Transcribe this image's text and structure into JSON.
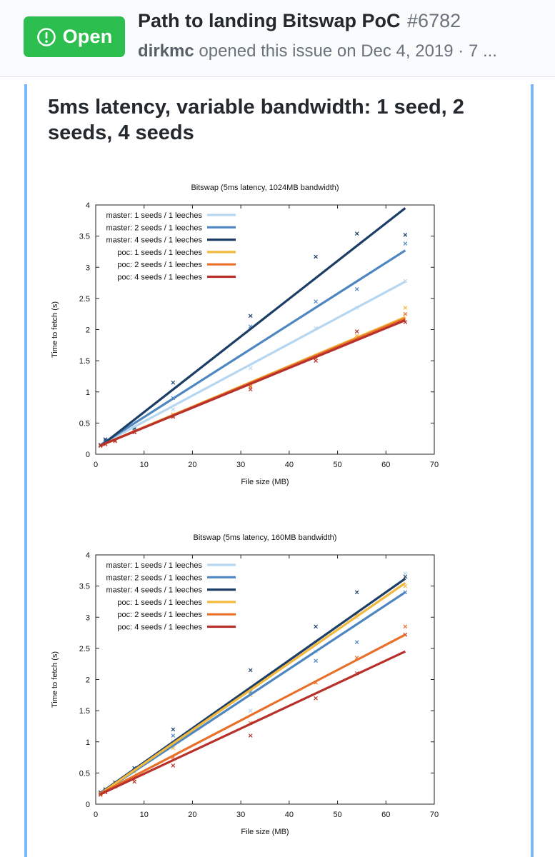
{
  "issue": {
    "state": "Open",
    "title": "Path to landing Bitswap PoC",
    "number": "#6782",
    "author": "dirkmc",
    "meta_rest": "opened this issue on Dec 4, 2019 · 7 ..."
  },
  "section": {
    "heading": "5ms latency, variable bandwidth: 1 seed, 2 seeds, 4 seeds"
  },
  "colors": {
    "open_green": "#2cbe4e",
    "card_border": "#79b8ff"
  },
  "chart_data": [
    {
      "type": "scatter",
      "title": "Bitswap (5ms latency, 1024MB bandwidth)",
      "xlabel": "File size (MB)",
      "ylabel": "Time to fetch (s)",
      "xlim": [
        0,
        70
      ],
      "ylim": [
        0,
        4
      ],
      "xticks": [
        0,
        10,
        20,
        30,
        40,
        50,
        60,
        70
      ],
      "yticks": [
        0,
        0.5,
        1,
        1.5,
        2,
        2.5,
        3,
        3.5,
        4
      ],
      "legend_position": "top-left",
      "series": [
        {
          "name": "master: 1 seeds / 1 leeches",
          "color": "#b7d6f0",
          "fit": [
            [
              1,
              0.15
            ],
            [
              64,
              2.77
            ]
          ],
          "points": [
            [
              1,
              0.14
            ],
            [
              2,
              0.18
            ],
            [
              4,
              0.24
            ],
            [
              8,
              0.38
            ],
            [
              16,
              0.72
            ],
            [
              32,
              1.38
            ],
            [
              45.5,
              2.02
            ],
            [
              54,
              2.35
            ],
            [
              64,
              2.78
            ]
          ]
        },
        {
          "name": "master: 2 seeds / 1 leeches",
          "color": "#4d86c0",
          "fit": [
            [
              1,
              0.15
            ],
            [
              64,
              3.27
            ]
          ],
          "points": [
            [
              1,
              0.15
            ],
            [
              2,
              0.22
            ],
            [
              4,
              0.26
            ],
            [
              8,
              0.4
            ],
            [
              16,
              0.9
            ],
            [
              32,
              2.05
            ],
            [
              45.5,
              2.45
            ],
            [
              54,
              2.65
            ],
            [
              64,
              3.38
            ]
          ]
        },
        {
          "name": "master: 4 seeds / 1 leeches",
          "color": "#1c3d66",
          "fit": [
            [
              1,
              0.13
            ],
            [
              64,
              3.95
            ]
          ],
          "points": [
            [
              1,
              0.15
            ],
            [
              2,
              0.24
            ],
            [
              4,
              0.28
            ],
            [
              8,
              0.42
            ],
            [
              16,
              1.15
            ],
            [
              32,
              2.22
            ],
            [
              45.5,
              3.17
            ],
            [
              54,
              3.54
            ],
            [
              64,
              3.52
            ]
          ]
        },
        {
          "name": "poc: 1 seeds / 1 leeches",
          "color": "#f3b93d",
          "fit": [
            [
              1,
              0.14
            ],
            [
              64,
              2.2
            ]
          ],
          "points": [
            [
              1,
              0.14
            ],
            [
              2,
              0.17
            ],
            [
              4,
              0.22
            ],
            [
              8,
              0.36
            ],
            [
              16,
              0.64
            ],
            [
              32,
              1.1
            ],
            [
              45.5,
              1.58
            ],
            [
              54,
              1.9
            ],
            [
              64,
              2.35
            ]
          ]
        },
        {
          "name": "poc: 2 seeds / 1 leeches",
          "color": "#e8702a",
          "fit": [
            [
              1,
              0.14
            ],
            [
              64,
              2.18
            ]
          ],
          "points": [
            [
              1,
              0.13
            ],
            [
              2,
              0.16
            ],
            [
              4,
              0.22
            ],
            [
              8,
              0.36
            ],
            [
              16,
              0.62
            ],
            [
              32,
              1.08
            ],
            [
              45.5,
              1.54
            ],
            [
              54,
              1.86
            ],
            [
              64,
              2.25
            ]
          ]
        },
        {
          "name": "poc: 4 seeds / 1 leeches",
          "color": "#b8302a",
          "fit": [
            [
              1,
              0.14
            ],
            [
              64,
              2.15
            ]
          ],
          "points": [
            [
              1,
              0.14
            ],
            [
              2,
              0.16
            ],
            [
              4,
              0.21
            ],
            [
              8,
              0.35
            ],
            [
              16,
              0.6
            ],
            [
              32,
              1.04
            ],
            [
              45.5,
              1.5
            ],
            [
              54,
              1.97
            ],
            [
              64,
              2.12
            ]
          ]
        }
      ]
    },
    {
      "type": "scatter",
      "title": "Bitswap (5ms latency, 160MB bandwidth)",
      "xlabel": "File size (MB)",
      "ylabel": "Time to fetch (s)",
      "xlim": [
        0,
        70
      ],
      "ylim": [
        0,
        4
      ],
      "xticks": [
        0,
        10,
        20,
        30,
        40,
        50,
        60,
        70
      ],
      "yticks": [
        0,
        0.5,
        1,
        1.5,
        2,
        2.5,
        3,
        3.5,
        4
      ],
      "legend_position": "top-left",
      "series": [
        {
          "name": "master: 1 seeds / 1 leeches",
          "color": "#b7d6f0",
          "fit": [
            [
              1,
              0.17
            ],
            [
              64,
              3.55
            ]
          ],
          "points": [
            [
              1,
              0.17
            ],
            [
              2,
              0.22
            ],
            [
              4,
              0.3
            ],
            [
              8,
              0.55
            ],
            [
              16,
              1.0
            ],
            [
              32,
              1.5
            ],
            [
              45.5,
              2.45
            ],
            [
              54,
              3.0
            ],
            [
              64,
              3.7
            ]
          ]
        },
        {
          "name": "master: 2 seeds / 1 leeches",
          "color": "#4d86c0",
          "fit": [
            [
              1,
              0.17
            ],
            [
              64,
              3.4
            ]
          ],
          "points": [
            [
              1,
              0.18
            ],
            [
              2,
              0.23
            ],
            [
              4,
              0.32
            ],
            [
              8,
              0.56
            ],
            [
              16,
              1.1
            ],
            [
              32,
              1.8
            ],
            [
              45.5,
              2.3
            ],
            [
              54,
              2.6
            ],
            [
              64,
              3.4
            ]
          ]
        },
        {
          "name": "master: 4 seeds / 1 leeches",
          "color": "#1c3d66",
          "fit": [
            [
              1,
              0.18
            ],
            [
              64,
              3.62
            ]
          ],
          "points": [
            [
              1,
              0.19
            ],
            [
              2,
              0.24
            ],
            [
              4,
              0.35
            ],
            [
              8,
              0.58
            ],
            [
              16,
              1.2
            ],
            [
              32,
              2.15
            ],
            [
              45.5,
              2.85
            ],
            [
              54,
              3.4
            ],
            [
              64,
              3.65
            ]
          ]
        },
        {
          "name": "poc: 1 seeds / 1 leeches",
          "color": "#f3b93d",
          "fit": [
            [
              1,
              0.17
            ],
            [
              64,
              3.55
            ]
          ],
          "points": [
            [
              1,
              0.16
            ],
            [
              2,
              0.2
            ],
            [
              4,
              0.33
            ],
            [
              8,
              0.52
            ],
            [
              16,
              0.9
            ],
            [
              32,
              1.75
            ],
            [
              45.5,
              2.6
            ],
            [
              54,
              3.05
            ],
            [
              64,
              3.5
            ]
          ]
        },
        {
          "name": "poc: 2 seeds / 1 leeches",
          "color": "#e8702a",
          "fit": [
            [
              1,
              0.17
            ],
            [
              64,
              2.72
            ]
          ],
          "points": [
            [
              1,
              0.17
            ],
            [
              2,
              0.2
            ],
            [
              4,
              0.3
            ],
            [
              8,
              0.4
            ],
            [
              16,
              0.75
            ],
            [
              32,
              1.3
            ],
            [
              45.5,
              1.95
            ],
            [
              54,
              2.35
            ],
            [
              64,
              2.85
            ]
          ]
        },
        {
          "name": "poc: 4 seeds / 1 leeches",
          "color": "#b8302a",
          "fit": [
            [
              1,
              0.16
            ],
            [
              64,
              2.45
            ]
          ],
          "points": [
            [
              1,
              0.15
            ],
            [
              2,
              0.19
            ],
            [
              4,
              0.28
            ],
            [
              8,
              0.36
            ],
            [
              16,
              0.62
            ],
            [
              32,
              1.1
            ],
            [
              45.5,
              1.7
            ],
            [
              54,
              2.1
            ],
            [
              64,
              2.72
            ]
          ]
        }
      ]
    }
  ]
}
